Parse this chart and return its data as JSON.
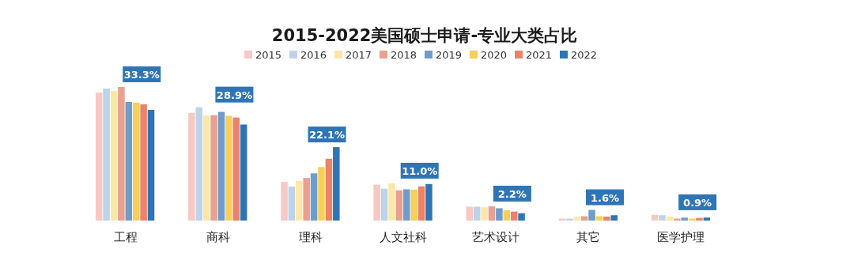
{
  "chart_data": {
    "type": "bar",
    "title": "2015-2022美国硕士申请-专业大类占比",
    "legend": "top",
    "categories": [
      "工程",
      "商科",
      "理科",
      "人文社科",
      "艺术设计",
      "其它",
      "医学护理"
    ],
    "series": [
      {
        "name": "2015",
        "color": "#f6c9c2",
        "values": [
          38.5,
          32.4,
          11.6,
          10.8,
          4.2,
          0.6,
          1.7
        ]
      },
      {
        "name": "2016",
        "color": "#bdd3ea",
        "values": [
          39.7,
          34.1,
          10.2,
          9.6,
          4.2,
          0.6,
          1.6
        ]
      },
      {
        "name": "2017",
        "color": "#fbe7a9",
        "values": [
          39.0,
          31.6,
          11.9,
          11.2,
          4.0,
          1.1,
          1.2
        ]
      },
      {
        "name": "2018",
        "color": "#e8a090",
        "values": [
          40.2,
          31.7,
          12.8,
          9.1,
          4.3,
          1.3,
          0.6
        ]
      },
      {
        "name": "2019",
        "color": "#6f9dcb",
        "values": [
          35.7,
          32.7,
          14.2,
          9.4,
          3.7,
          3.2,
          0.9
        ]
      },
      {
        "name": "2020",
        "color": "#f7cf5a",
        "values": [
          35.5,
          31.5,
          16.1,
          9.3,
          3.1,
          1.3,
          0.6
        ]
      },
      {
        "name": "2021",
        "color": "#ec8268",
        "values": [
          35.0,
          31.0,
          18.6,
          10.3,
          2.7,
          1.2,
          0.8
        ]
      },
      {
        "name": "2022",
        "color": "#2e75b6",
        "values": [
          33.3,
          28.9,
          22.1,
          11.0,
          2.2,
          1.6,
          0.9
        ],
        "value_labels": [
          "33.3%",
          "28.9%",
          "22.1%",
          "11.0%",
          "2.2%",
          "1.6%",
          "0.9%"
        ]
      }
    ]
  }
}
